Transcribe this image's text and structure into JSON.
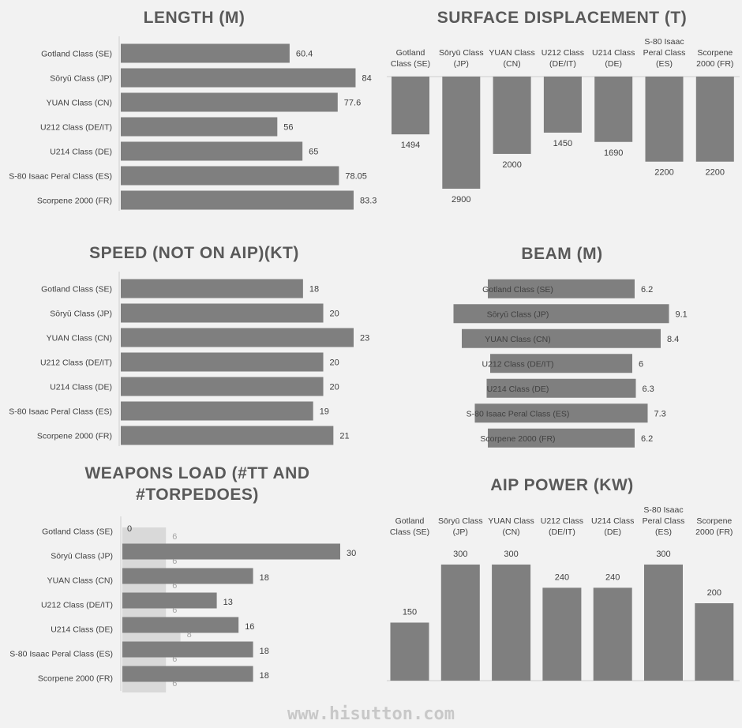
{
  "chart_data": [
    {
      "id": "length",
      "type": "bar",
      "orientation": "horizontal",
      "title": "LENGTH (M)",
      "categories": [
        "Gotland Class (SE)",
        "Sōryū Class (JP)",
        "YUAN Class (CN)",
        "U212 Class (DE/IT)",
        "U214 Class (DE)",
        "S-80 Isaac Peral Class (ES)",
        "Scorpene 2000 (FR)"
      ],
      "values": [
        60.4,
        84,
        77.6,
        56,
        65,
        78.05,
        83.3
      ],
      "value_labels": [
        "60.4",
        "84",
        "77.6",
        "56",
        "65",
        "78.05",
        "83.3"
      ],
      "xlim": [
        0,
        85
      ]
    },
    {
      "id": "displacement",
      "type": "bar",
      "orientation": "vertical-hanging",
      "title": "SURFACE DISPLACEMENT (T)",
      "categories": [
        "Gotland Class (SE)",
        "Sōryū Class (JP)",
        "YUAN Class (CN)",
        "U212 Class (DE/IT)",
        "U214 Class (DE)",
        "S-80 Isaac Peral Class (ES)",
        "Scorpene 2000 (FR)"
      ],
      "values": [
        1494,
        2900,
        2000,
        1450,
        1690,
        2200,
        2200
      ],
      "value_labels": [
        "1494",
        "2900",
        "2000",
        "1450",
        "1690",
        "2200",
        "2200"
      ],
      "ylim": [
        0,
        2900
      ]
    },
    {
      "id": "speed",
      "type": "bar",
      "orientation": "horizontal",
      "title": "SPEED (NOT ON AIP)(KT)",
      "categories": [
        "Gotland Class (SE)",
        "Sōryū Class (JP)",
        "YUAN Class (CN)",
        "U212 Class (DE/IT)",
        "U214 Class (DE)",
        "S-80 Isaac Peral Class (ES)",
        "Scorpene 2000 (FR)"
      ],
      "values": [
        18,
        20,
        23,
        20,
        20,
        19,
        21
      ],
      "value_labels": [
        "18",
        "20",
        "23",
        "20",
        "20",
        "19",
        "21"
      ],
      "xlim": [
        0,
        23
      ]
    },
    {
      "id": "beam",
      "type": "bar",
      "orientation": "horizontal-centered",
      "title": "BEAM (M)",
      "categories": [
        "Gotland Class (SE)",
        "Sōryū Class (JP)",
        "YUAN Class (CN)",
        "U212 Class (DE/IT)",
        "U214 Class (DE)",
        "S-80 Isaac Peral Class (ES)",
        "Scorpene 2000 (FR)"
      ],
      "values": [
        6.2,
        9.1,
        8.4,
        6,
        6.3,
        7.3,
        6.2
      ],
      "value_labels": [
        "6.2",
        "9.1",
        "8.4",
        "6",
        "6.3",
        "7.3",
        "6.2"
      ],
      "xlim": [
        0,
        9.1
      ]
    },
    {
      "id": "weapons",
      "type": "bar",
      "orientation": "horizontal",
      "title": "WEAPONS LOAD (#TT AND #TORPEDOES)",
      "title_lines": [
        "WEAPONS LOAD (#TT AND",
        "#TORPEDOES)"
      ],
      "categories": [
        "Gotland Class (SE)",
        "Sōryū Class (JP)",
        "YUAN Class (CN)",
        "U212 Class (DE/IT)",
        "U214 Class (DE)",
        "S-80 Isaac Peral Class (ES)",
        "Scorpene 2000 (FR)"
      ],
      "series": [
        {
          "values": [
            0,
            30,
            18,
            13,
            16,
            18,
            18
          ],
          "value_labels": [
            "0",
            "30",
            "18",
            "13",
            "16",
            "18",
            "18"
          ],
          "color": "#7f7f7f"
        },
        {
          "values": [
            6,
            6,
            6,
            6,
            8,
            6,
            6
          ],
          "value_labels": [
            "6",
            "6",
            "6",
            "6",
            "8",
            "6",
            "6"
          ],
          "color": "#d9d9d9"
        }
      ],
      "xlim": [
        0,
        30
      ]
    },
    {
      "id": "aip",
      "type": "bar",
      "orientation": "vertical",
      "title": "AIP POWER (KW)",
      "categories": [
        "Gotland Class (SE)",
        "Sōryū Class (JP)",
        "YUAN Class (CN)",
        "U212 Class (DE/IT)",
        "U214 Class (DE)",
        "S-80 Isaac Peral Class (ES)",
        "Scorpene 2000 (FR)"
      ],
      "values": [
        150,
        300,
        300,
        240,
        240,
        300,
        200
      ],
      "value_labels": [
        "150",
        "300",
        "300",
        "240",
        "240",
        "300",
        "200"
      ],
      "ylim": [
        0,
        300
      ]
    }
  ],
  "footer": {
    "watermark": "www.hisutton.com"
  },
  "colors": {
    "bar": "#7f7f7f",
    "bar_light": "#d9d9d9",
    "background": "#f2f2f2",
    "axis": "#d9d9d9",
    "title": "#595959"
  }
}
